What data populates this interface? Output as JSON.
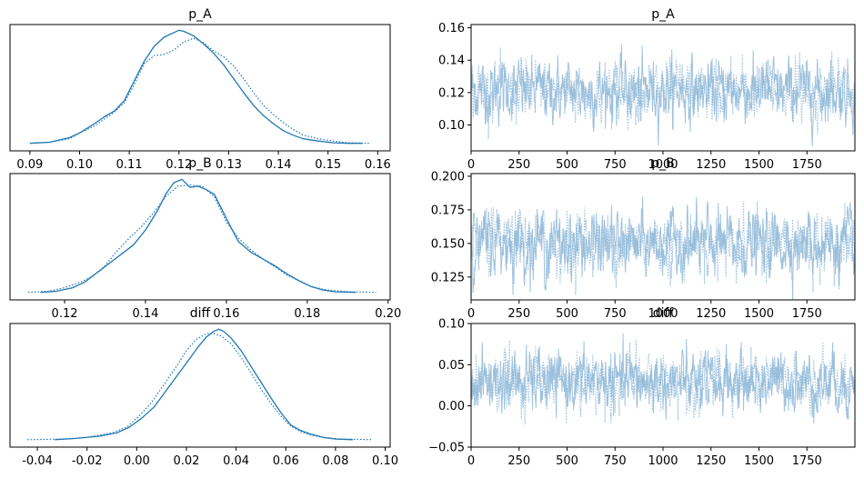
{
  "figure": {
    "colors": {
      "line": "#1f77b4",
      "trace": "#8fb8d8",
      "axis": "#000000"
    }
  },
  "chart_data": [
    {
      "type": "line",
      "kind": "density",
      "title": "p_A",
      "xlim": [
        0.086,
        0.1625
      ],
      "xticks": [
        0.09,
        0.1,
        0.11,
        0.12,
        0.13,
        0.14,
        0.15,
        0.16
      ],
      "xtick_labels": [
        "0.09",
        "0.10",
        "0.11",
        "0.12",
        "0.13",
        "0.14",
        "0.15",
        "0.16"
      ],
      "yticks": [],
      "series": [
        {
          "style": "solid",
          "x": [
            0.09,
            0.094,
            0.098,
            0.1,
            0.103,
            0.105,
            0.107,
            0.109,
            0.111,
            0.113,
            0.115,
            0.117,
            0.119,
            0.12,
            0.121,
            0.123,
            0.125,
            0.127,
            0.129,
            0.131,
            0.133,
            0.135,
            0.137,
            0.139,
            0.141,
            0.143,
            0.145,
            0.148,
            0.151,
            0.154,
            0.157
          ],
          "y": [
            0.01,
            0.02,
            0.06,
            0.1,
            0.18,
            0.24,
            0.29,
            0.38,
            0.55,
            0.72,
            0.85,
            0.93,
            0.97,
            0.99,
            0.98,
            0.94,
            0.87,
            0.79,
            0.69,
            0.57,
            0.45,
            0.34,
            0.25,
            0.18,
            0.12,
            0.08,
            0.05,
            0.03,
            0.015,
            0.01,
            0.01
          ]
        },
        {
          "style": "dotted",
          "x": [
            0.09,
            0.094,
            0.098,
            0.1,
            0.103,
            0.105,
            0.107,
            0.109,
            0.111,
            0.113,
            0.115,
            0.117,
            0.119,
            0.121,
            0.123,
            0.125,
            0.127,
            0.129,
            0.131,
            0.133,
            0.135,
            0.137,
            0.139,
            0.141,
            0.143,
            0.145,
            0.148,
            0.151,
            0.154,
            0.1585
          ],
          "y": [
            0.01,
            0.02,
            0.05,
            0.1,
            0.16,
            0.22,
            0.28,
            0.36,
            0.52,
            0.7,
            0.77,
            0.78,
            0.82,
            0.89,
            0.92,
            0.88,
            0.81,
            0.76,
            0.68,
            0.57,
            0.45,
            0.34,
            0.26,
            0.19,
            0.13,
            0.08,
            0.05,
            0.03,
            0.015,
            0.01
          ]
        }
      ]
    },
    {
      "type": "line",
      "kind": "trace",
      "title": "p_A",
      "xlim": [
        0,
        2000
      ],
      "ylim": [
        0.084,
        0.162
      ],
      "xticks": [
        0,
        250,
        500,
        750,
        1000,
        1250,
        1500,
        1750
      ],
      "xtick_labels": [
        "0",
        "250",
        "500",
        "750",
        "1000",
        "1250",
        "1500",
        "1750"
      ],
      "yticks": [
        0.1,
        0.12,
        0.14,
        0.16
      ],
      "ytick_labels": [
        "0.10",
        "0.12",
        "0.14",
        "0.16"
      ],
      "center": 0.121,
      "spread": 0.009
    },
    {
      "type": "line",
      "kind": "density",
      "title": "p_B",
      "xlim": [
        0.1065,
        0.2005
      ],
      "xticks": [
        0.12,
        0.14,
        0.16,
        0.18,
        0.2
      ],
      "xtick_labels": [
        "0.12",
        "0.14",
        "0.16",
        "0.18",
        "0.20"
      ],
      "yticks": [],
      "series": [
        {
          "style": "solid",
          "x": [
            0.114,
            0.118,
            0.122,
            0.125,
            0.128,
            0.131,
            0.134,
            0.137,
            0.14,
            0.143,
            0.145,
            0.147,
            0.149,
            0.151,
            0.153,
            0.155,
            0.157,
            0.159,
            0.161,
            0.163,
            0.166,
            0.169,
            0.172,
            0.175,
            0.178,
            0.181,
            0.184,
            0.187,
            0.192
          ],
          "y": [
            0.01,
            0.02,
            0.05,
            0.1,
            0.18,
            0.26,
            0.34,
            0.42,
            0.55,
            0.72,
            0.86,
            0.96,
            0.99,
            0.92,
            0.93,
            0.9,
            0.86,
            0.72,
            0.58,
            0.45,
            0.36,
            0.3,
            0.24,
            0.17,
            0.11,
            0.06,
            0.03,
            0.015,
            0.01
          ]
        },
        {
          "style": "dotted",
          "x": [
            0.111,
            0.116,
            0.12,
            0.124,
            0.127,
            0.13,
            0.133,
            0.136,
            0.139,
            0.142,
            0.145,
            0.148,
            0.151,
            0.154,
            0.157,
            0.16,
            0.163,
            0.166,
            0.169,
            0.172,
            0.175,
            0.178,
            0.181,
            0.185,
            0.19,
            0.197
          ],
          "y": [
            0.01,
            0.02,
            0.05,
            0.1,
            0.15,
            0.24,
            0.37,
            0.48,
            0.58,
            0.7,
            0.84,
            0.93,
            0.94,
            0.93,
            0.84,
            0.62,
            0.48,
            0.38,
            0.3,
            0.23,
            0.16,
            0.11,
            0.06,
            0.03,
            0.015,
            0.01
          ]
        }
      ]
    },
    {
      "type": "line",
      "kind": "trace",
      "title": "p_B",
      "xlim": [
        0,
        2000
      ],
      "ylim": [
        0.108,
        0.202
      ],
      "xticks": [
        0,
        250,
        500,
        750,
        1000,
        1250,
        1500,
        1750
      ],
      "xtick_labels": [
        "0",
        "250",
        "500",
        "750",
        "1000",
        "1250",
        "1500",
        "1750"
      ],
      "yticks": [
        0.125,
        0.15,
        0.175,
        0.2
      ],
      "ytick_labels": [
        "0.125",
        "0.150",
        "0.175",
        "0.200"
      ],
      "center": 0.15,
      "spread": 0.0115
    },
    {
      "type": "line",
      "kind": "density",
      "title": "diff",
      "xlim": [
        -0.051,
        0.102
      ],
      "xticks": [
        -0.04,
        -0.02,
        0.0,
        0.02,
        0.04,
        0.06,
        0.08,
        0.1
      ],
      "xtick_labels": [
        "-0.04",
        "-0.02",
        "0.00",
        "0.02",
        "0.04",
        "0.06",
        "0.08",
        "0.10"
      ],
      "yticks": [],
      "series": [
        {
          "style": "solid",
          "x": [
            -0.033,
            -0.025,
            -0.015,
            -0.008,
            -0.003,
            0.002,
            0.007,
            0.012,
            0.017,
            0.021,
            0.025,
            0.028,
            0.031,
            0.033,
            0.035,
            0.038,
            0.042,
            0.046,
            0.05,
            0.054,
            0.058,
            0.062,
            0.066,
            0.07,
            0.075,
            0.08,
            0.087
          ],
          "y": [
            0.01,
            0.02,
            0.04,
            0.07,
            0.12,
            0.2,
            0.3,
            0.45,
            0.6,
            0.72,
            0.84,
            0.92,
            0.97,
            0.99,
            0.97,
            0.91,
            0.8,
            0.66,
            0.52,
            0.38,
            0.25,
            0.14,
            0.09,
            0.06,
            0.03,
            0.015,
            0.01
          ]
        },
        {
          "style": "dotted",
          "x": [
            -0.044,
            -0.03,
            -0.02,
            -0.01,
            -0.004,
            0.001,
            0.006,
            0.011,
            0.016,
            0.02,
            0.024,
            0.028,
            0.031,
            0.034,
            0.038,
            0.042,
            0.046,
            0.05,
            0.054,
            0.058,
            0.062,
            0.066,
            0.07,
            0.075,
            0.082,
            0.095
          ],
          "y": [
            0.01,
            0.015,
            0.03,
            0.07,
            0.12,
            0.22,
            0.34,
            0.5,
            0.66,
            0.8,
            0.9,
            0.95,
            0.95,
            0.93,
            0.86,
            0.74,
            0.6,
            0.46,
            0.33,
            0.22,
            0.13,
            0.08,
            0.05,
            0.03,
            0.015,
            0.01
          ]
        }
      ]
    },
    {
      "type": "line",
      "kind": "trace",
      "title": "diff",
      "xlim": [
        0,
        2000
      ],
      "ylim": [
        -0.05,
        0.1
      ],
      "xticks": [
        0,
        250,
        500,
        750,
        1000,
        1250,
        1500,
        1750
      ],
      "xtick_labels": [
        "0",
        "250",
        "500",
        "750",
        "1000",
        "1250",
        "1500",
        "1750"
      ],
      "yticks": [
        -0.05,
        0.0,
        0.05,
        0.1
      ],
      "ytick_labels": [
        "−0.05",
        "0.00",
        "0.05",
        "0.10"
      ],
      "center": 0.029,
      "spread": 0.0175
    }
  ]
}
